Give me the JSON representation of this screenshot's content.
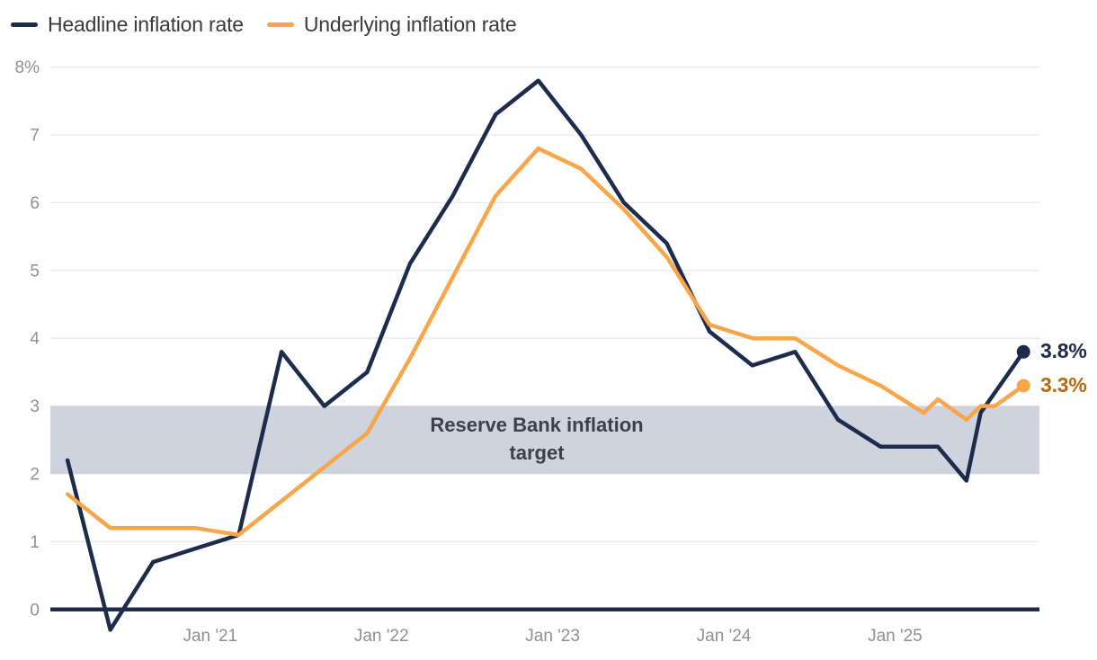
{
  "chart_data": {
    "type": "line",
    "title": "",
    "unit": "%",
    "grid": true,
    "legend_position": "top-left",
    "ylim": [
      -0.5,
      8
    ],
    "yticks": [
      {
        "value": 8,
        "label": "8%"
      },
      {
        "value": 7,
        "label": "7"
      },
      {
        "value": 6,
        "label": "6"
      },
      {
        "value": 5,
        "label": "5"
      },
      {
        "value": 4,
        "label": "4"
      },
      {
        "value": 3,
        "label": "3"
      },
      {
        "value": 2,
        "label": "2"
      },
      {
        "value": 1,
        "label": "1"
      },
      {
        "value": 0,
        "label": "0"
      }
    ],
    "xticks": [
      {
        "label": "Jan '21",
        "m": 0
      },
      {
        "label": "Jan '22",
        "m": 12
      },
      {
        "label": "Jan '23",
        "m": 24
      },
      {
        "label": "Jan '24",
        "m": 36
      },
      {
        "label": "Jan '25",
        "m": 48
      }
    ],
    "target_band": {
      "from": 2,
      "to": 3,
      "label_line1": "Reserve Bank inflation",
      "label_line2": "target",
      "color": "#ced3de"
    },
    "series": [
      {
        "name": "Headline inflation rate",
        "color": "#1d2b4c",
        "end_label": "3.8%",
        "end_label_color": "#1d2b4c",
        "points": [
          {
            "date": "Mar '20",
            "m": -10,
            "value": 2.2
          },
          {
            "date": "Jun '20",
            "m": -7,
            "value": -0.3
          },
          {
            "date": "Sep '20",
            "m": -4,
            "value": 0.7
          },
          {
            "date": "Dec '20",
            "m": -1,
            "value": 0.9
          },
          {
            "date": "Mar '21",
            "m": 2,
            "value": 1.1
          },
          {
            "date": "Jun '21",
            "m": 5,
            "value": 3.8
          },
          {
            "date": "Sep '21",
            "m": 8,
            "value": 3.0
          },
          {
            "date": "Dec '21",
            "m": 11,
            "value": 3.5
          },
          {
            "date": "Mar '22",
            "m": 14,
            "value": 5.1
          },
          {
            "date": "Jun '22",
            "m": 17,
            "value": 6.1
          },
          {
            "date": "Sep '22",
            "m": 20,
            "value": 7.3
          },
          {
            "date": "Dec '22",
            "m": 23,
            "value": 7.8
          },
          {
            "date": "Mar '23",
            "m": 26,
            "value": 7.0
          },
          {
            "date": "Jun '23",
            "m": 29,
            "value": 6.0
          },
          {
            "date": "Sep '23",
            "m": 32,
            "value": 5.4
          },
          {
            "date": "Dec '23",
            "m": 35,
            "value": 4.1
          },
          {
            "date": "Mar '24",
            "m": 38,
            "value": 3.6
          },
          {
            "date": "Jun '24",
            "m": 41,
            "value": 3.8
          },
          {
            "date": "Sep '24",
            "m": 44,
            "value": 2.8
          },
          {
            "date": "Dec '24",
            "m": 47,
            "value": 2.4
          },
          {
            "date": "Mar '25",
            "m": 50,
            "value": 2.4
          },
          {
            "date": "Apr '25",
            "m": 51,
            "value": 2.4
          },
          {
            "date": "Jun '25",
            "m": 53,
            "value": 1.9
          },
          {
            "date": "Jul '25",
            "m": 54,
            "value": 2.9
          },
          {
            "date": "Aug '25",
            "m": 55,
            "value": 3.2
          },
          {
            "date": "Sep '25",
            "m": 56,
            "value": 3.5
          },
          {
            "date": "Oct '25",
            "m": 57,
            "value": 3.8
          }
        ]
      },
      {
        "name": "Underlying inflation rate",
        "color": "#f9a64a",
        "end_label": "3.3%",
        "end_label_color": "#b06d12",
        "points": [
          {
            "date": "Mar '20",
            "m": -10,
            "value": 1.7
          },
          {
            "date": "Jun '20",
            "m": -7,
            "value": 1.2
          },
          {
            "date": "Sep '20",
            "m": -4,
            "value": 1.2
          },
          {
            "date": "Dec '20",
            "m": -1,
            "value": 1.2
          },
          {
            "date": "Mar '21",
            "m": 2,
            "value": 1.1
          },
          {
            "date": "Jun '21",
            "m": 5,
            "value": 1.6
          },
          {
            "date": "Sep '21",
            "m": 8,
            "value": 2.1
          },
          {
            "date": "Dec '21",
            "m": 11,
            "value": 2.6
          },
          {
            "date": "Mar '22",
            "m": 14,
            "value": 3.7
          },
          {
            "date": "Jun '22",
            "m": 17,
            "value": 4.9
          },
          {
            "date": "Sep '22",
            "m": 20,
            "value": 6.1
          },
          {
            "date": "Dec '22",
            "m": 23,
            "value": 6.8
          },
          {
            "date": "Mar '23",
            "m": 26,
            "value": 6.5
          },
          {
            "date": "Jun '23",
            "m": 29,
            "value": 5.9
          },
          {
            "date": "Sep '23",
            "m": 32,
            "value": 5.2
          },
          {
            "date": "Dec '23",
            "m": 35,
            "value": 4.2
          },
          {
            "date": "Mar '24",
            "m": 38,
            "value": 4.0
          },
          {
            "date": "Jun '24",
            "m": 41,
            "value": 4.0
          },
          {
            "date": "Sep '24",
            "m": 44,
            "value": 3.6
          },
          {
            "date": "Dec '24",
            "m": 47,
            "value": 3.3
          },
          {
            "date": "Mar '25",
            "m": 50,
            "value": 2.9
          },
          {
            "date": "Apr '25",
            "m": 51,
            "value": 3.1
          },
          {
            "date": "Jun '25",
            "m": 53,
            "value": 2.8
          },
          {
            "date": "Jul '25",
            "m": 54,
            "value": 3.0
          },
          {
            "date": "Aug '25",
            "m": 55,
            "value": 3.0
          },
          {
            "date": "Oct '25",
            "m": 57,
            "value": 3.3
          }
        ]
      }
    ]
  },
  "colors": {
    "gridline": "#eaeaec",
    "zero_axis": "#1d2b4c",
    "axis_text": "#8e9096",
    "legend_text": "#3a3a3a",
    "band_text": "#3d4046"
  }
}
